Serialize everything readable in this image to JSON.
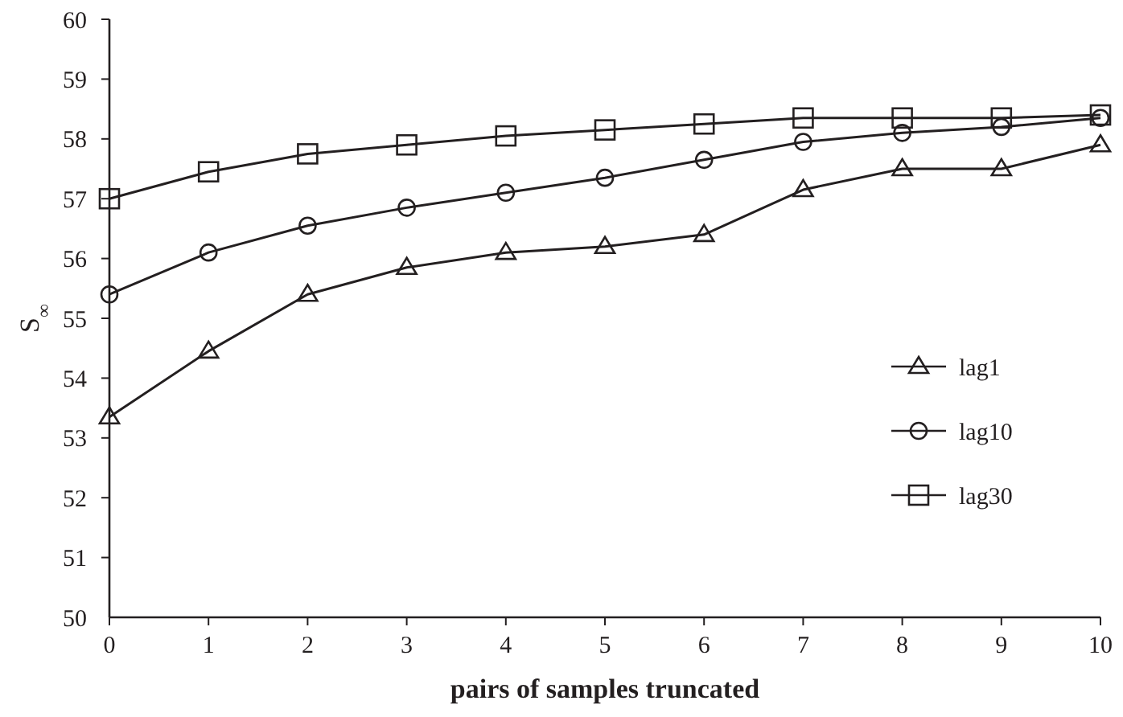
{
  "chart_data": {
    "type": "line",
    "xlabel": "pairs of samples truncated",
    "ylabel": "S$_{∞}$",
    "x": [
      0,
      1,
      2,
      3,
      4,
      5,
      6,
      7,
      8,
      9,
      10
    ],
    "xlim": [
      0,
      10
    ],
    "xticks": [
      0,
      1,
      2,
      3,
      4,
      5,
      6,
      7,
      8,
      9,
      10
    ],
    "ylim": [
      50,
      60
    ],
    "yticks": [
      50,
      51,
      52,
      53,
      54,
      55,
      56,
      57,
      58,
      59,
      60
    ],
    "grid": false,
    "legend": "right",
    "line_style": "solid",
    "series": [
      {
        "name": "lag1",
        "color": "#231f20",
        "marker": "triangle",
        "values": [
          53.35,
          54.45,
          55.4,
          55.85,
          56.1,
          56.2,
          56.4,
          57.15,
          57.5,
          57.5,
          57.9
        ]
      },
      {
        "name": "lag10",
        "color": "#231f20",
        "marker": "circle",
        "values": [
          55.4,
          56.1,
          56.55,
          56.85,
          57.1,
          57.35,
          57.65,
          57.95,
          58.1,
          58.2,
          58.35
        ]
      },
      {
        "name": "lag30",
        "color": "#231f20",
        "marker": "square",
        "values": [
          57.0,
          57.45,
          57.75,
          57.9,
          58.05,
          58.15,
          58.25,
          58.35,
          58.35,
          58.35,
          58.4
        ]
      }
    ]
  }
}
